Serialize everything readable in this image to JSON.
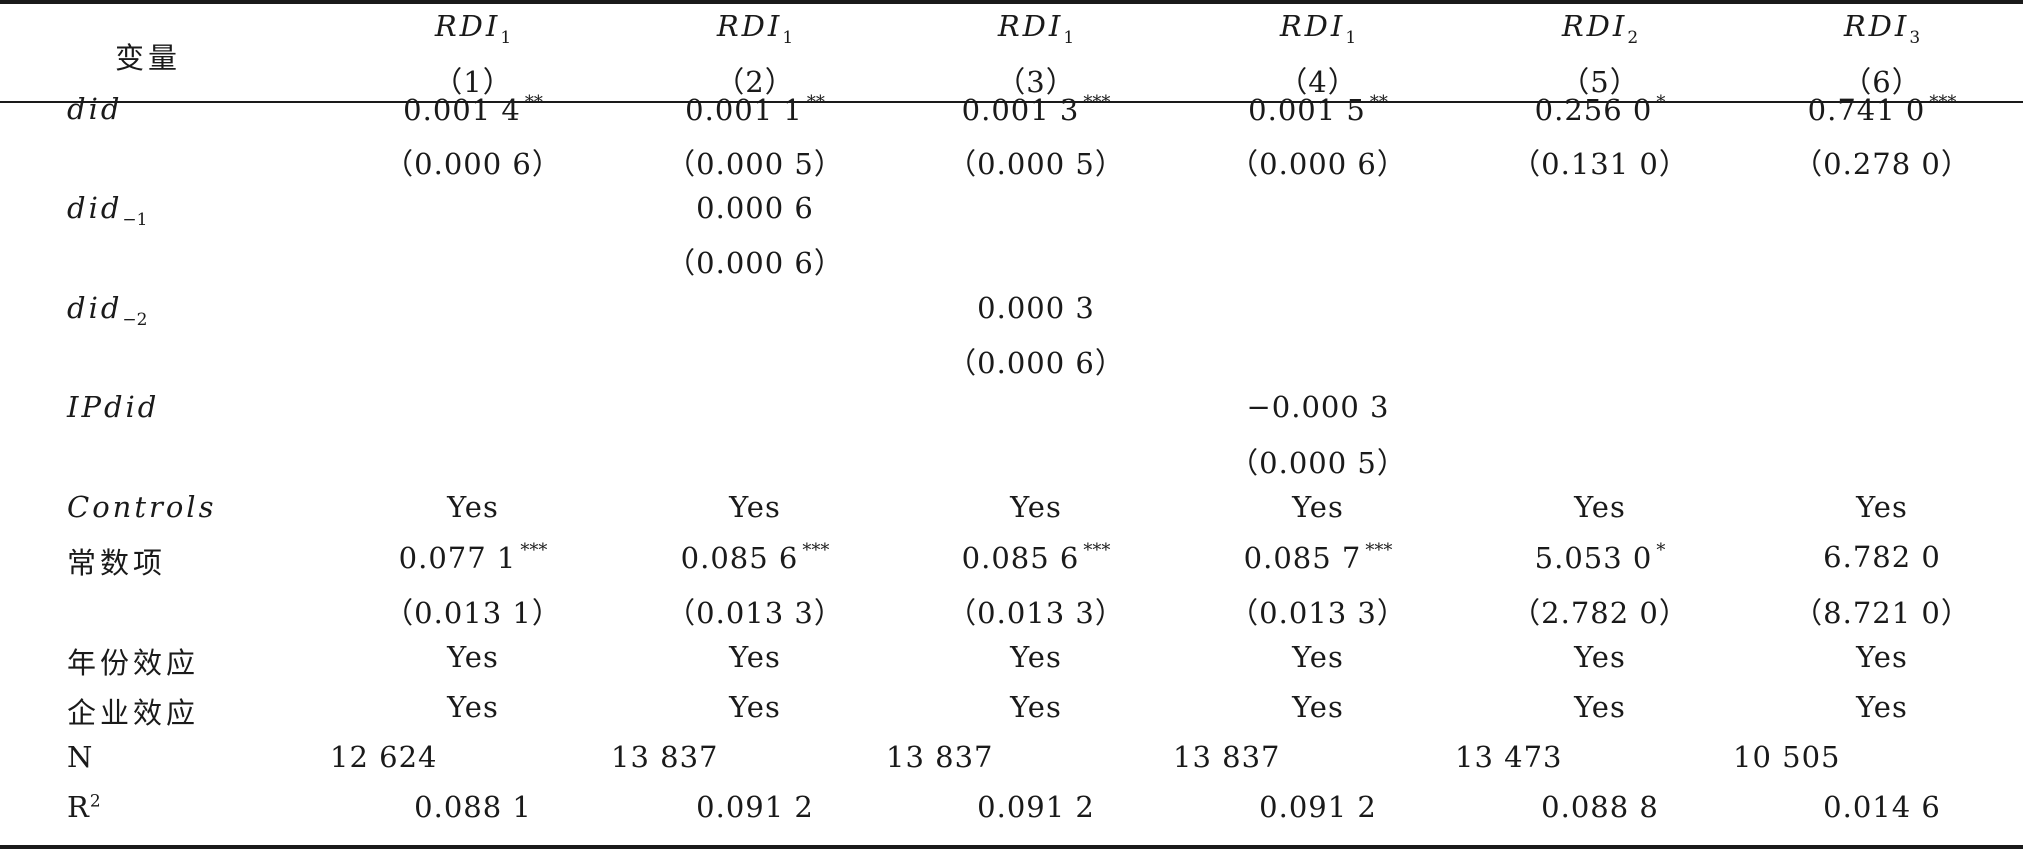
{
  "header": {
    "variable_label": "变量",
    "columns": [
      {
        "var": "RDI",
        "sub": "1",
        "num": "（1）"
      },
      {
        "var": "RDI",
        "sub": "1",
        "num": "（2）"
      },
      {
        "var": "RDI",
        "sub": "1",
        "num": "（3）"
      },
      {
        "var": "RDI",
        "sub": "1",
        "num": "（4）"
      },
      {
        "var": "RDI",
        "sub": "2",
        "num": "（5）"
      },
      {
        "var": "RDI",
        "sub": "3",
        "num": "（6）"
      }
    ]
  },
  "rows": {
    "did": {
      "label": "did",
      "coef": [
        {
          "v": "0.001 4",
          "s": "**"
        },
        {
          "v": "0.001 1",
          "s": "**"
        },
        {
          "v": "0.001 3",
          "s": "***"
        },
        {
          "v": "0.001 5",
          "s": "**"
        },
        {
          "v": "0.256 0",
          "s": "*"
        },
        {
          "v": "0.741 0",
          "s": "***"
        }
      ],
      "se": [
        "（0.000 6）",
        "（0.000 5）",
        "（0.000 5）",
        "（0.000 6）",
        "（0.131 0）",
        "（0.278 0）"
      ]
    },
    "did_lag1": {
      "label": "did",
      "sub": "−1",
      "coef": "0.000 6",
      "se": "（0.000 6）"
    },
    "did_lag2": {
      "label": "did",
      "sub": "−2",
      "coef": "0.000 3",
      "se": "（0.000 6）"
    },
    "ipdid": {
      "label": "IPdid",
      "coef": "−0.000 3",
      "se": "（0.000 5）"
    },
    "controls": {
      "label": "Controls",
      "values": [
        "Yes",
        "Yes",
        "Yes",
        "Yes",
        "Yes",
        "Yes"
      ]
    },
    "constant": {
      "label": "常数项",
      "coef": [
        {
          "v": "0.077 1",
          "s": "***"
        },
        {
          "v": "0.085 6",
          "s": "***"
        },
        {
          "v": "0.085 6",
          "s": "***"
        },
        {
          "v": "0.085 7",
          "s": "***"
        },
        {
          "v": "5.053 0",
          "s": "*"
        },
        {
          "v": "6.782 0",
          "s": ""
        }
      ],
      "se": [
        "（0.013 1）",
        "（0.013 3）",
        "（0.013 3）",
        "（0.013 3）",
        "（2.782 0）",
        "（8.721 0）"
      ]
    },
    "year_effect": {
      "label": "年份效应",
      "values": [
        "Yes",
        "Yes",
        "Yes",
        "Yes",
        "Yes",
        "Yes"
      ]
    },
    "firm_effect": {
      "label": "企业效应",
      "values": [
        "Yes",
        "Yes",
        "Yes",
        "Yes",
        "Yes",
        "Yes"
      ]
    },
    "n": {
      "label": "N",
      "values": [
        "12 624",
        "13 837",
        "13 837",
        "13 837",
        "13 473",
        "10 505"
      ]
    },
    "r2": {
      "label": "R",
      "sup": "2",
      "values": [
        "0.088 1",
        "0.091 2",
        "0.091 2",
        "0.091 2",
        "0.088 8",
        "0.014 6"
      ]
    }
  }
}
